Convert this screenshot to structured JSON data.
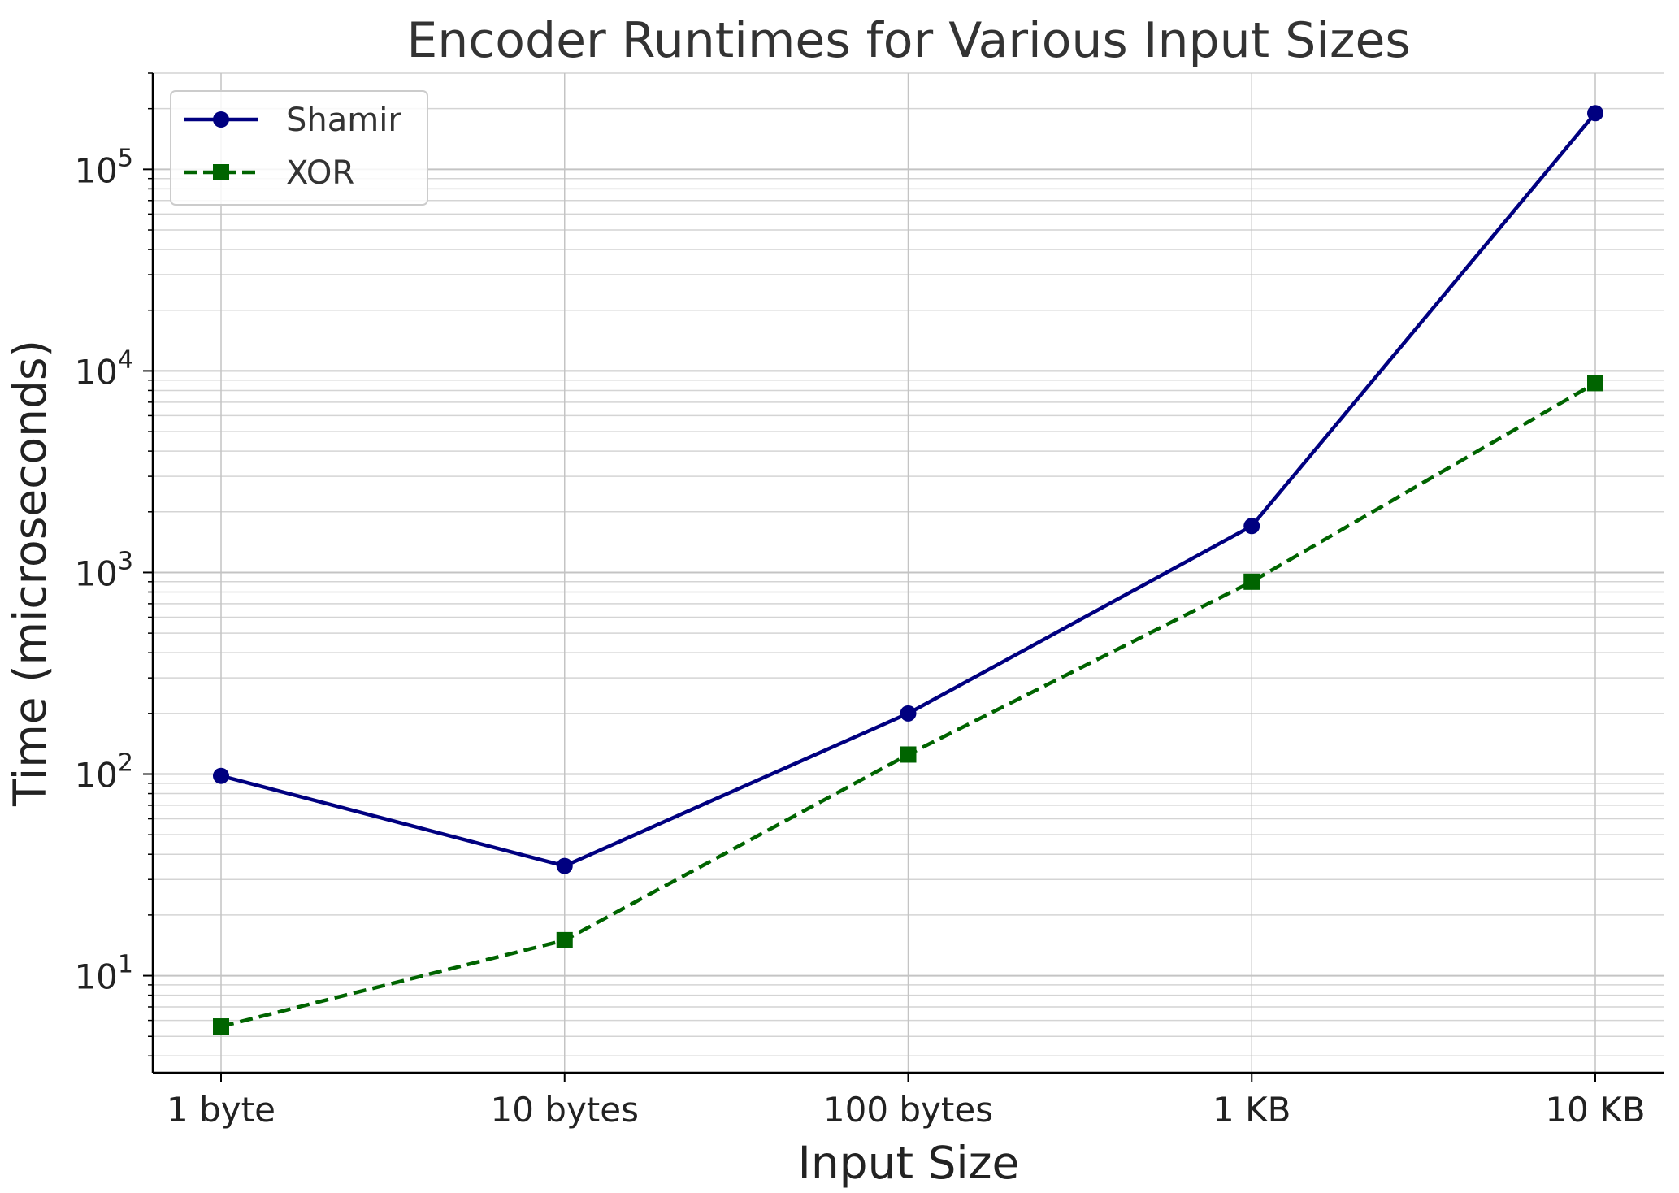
{
  "chart_data": {
    "type": "line",
    "title": "Encoder Runtimes for Various Input Sizes",
    "xlabel": "Input Size",
    "ylabel": "Time (microseconds)",
    "categories": [
      "1 byte",
      "10 bytes",
      "100 bytes",
      "1 KB",
      "10 KB"
    ],
    "yscale": "log",
    "ylim": [
      3.3,
      300000
    ],
    "y_ticks": [
      {
        "base": "10",
        "exp": "1",
        "value": 10
      },
      {
        "base": "10",
        "exp": "2",
        "value": 100
      },
      {
        "base": "10",
        "exp": "3",
        "value": 1000
      },
      {
        "base": "10",
        "exp": "4",
        "value": 10000
      },
      {
        "base": "10",
        "exp": "5",
        "value": 100000
      }
    ],
    "grid": true,
    "legend_position": "top-left",
    "series": [
      {
        "name": "Shamir",
        "values": [
          98,
          35,
          200,
          1700,
          190000
        ],
        "color": "#000080",
        "linestyle": "solid",
        "marker": "circle"
      },
      {
        "name": "XOR",
        "values": [
          5.6,
          15,
          125,
          900,
          8700
        ],
        "color": "#006400",
        "linestyle": "dashed",
        "marker": "square"
      }
    ]
  }
}
